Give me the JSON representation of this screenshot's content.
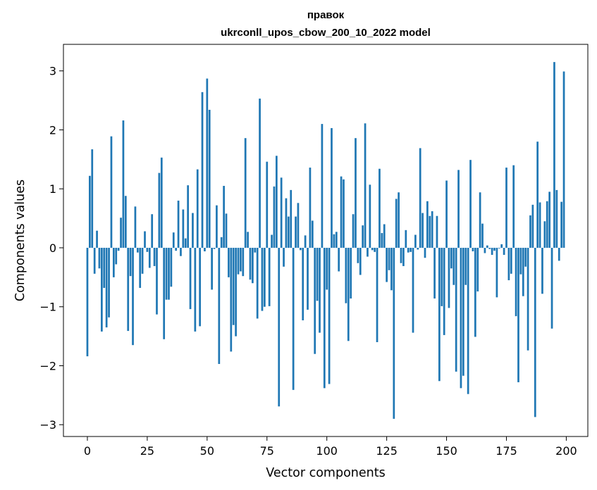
{
  "chart_data": {
    "type": "bar",
    "title_line1": "правок",
    "title_line2": "ukrconll_upos_cbow_200_10_2022 model",
    "xlabel": "Vector components",
    "ylabel": "Components values",
    "xlim": [
      -10,
      209
    ],
    "ylim": [
      -3.2,
      3.45
    ],
    "xticks": [
      0,
      25,
      50,
      75,
      100,
      125,
      150,
      175,
      200
    ],
    "yticks": [
      -3,
      -2,
      -1,
      0,
      1,
      2,
      3
    ],
    "bar_color": "#1f77b4",
    "grid": false,
    "x": [
      0,
      1,
      2,
      3,
      4,
      5,
      6,
      7,
      8,
      9,
      10,
      11,
      12,
      13,
      14,
      15,
      16,
      17,
      18,
      19,
      20,
      21,
      22,
      23,
      24,
      25,
      26,
      27,
      28,
      29,
      30,
      31,
      32,
      33,
      34,
      35,
      36,
      37,
      38,
      39,
      40,
      41,
      42,
      43,
      44,
      45,
      46,
      47,
      48,
      49,
      50,
      51,
      52,
      53,
      54,
      55,
      56,
      57,
      58,
      59,
      60,
      61,
      62,
      63,
      64,
      65,
      66,
      67,
      68,
      69,
      70,
      71,
      72,
      73,
      74,
      75,
      76,
      77,
      78,
      79,
      80,
      81,
      82,
      83,
      84,
      85,
      86,
      87,
      88,
      89,
      90,
      91,
      92,
      93,
      94,
      95,
      96,
      97,
      98,
      99,
      100,
      101,
      102,
      103,
      104,
      105,
      106,
      107,
      108,
      109,
      110,
      111,
      112,
      113,
      114,
      115,
      116,
      117,
      118,
      119,
      120,
      121,
      122,
      123,
      124,
      125,
      126,
      127,
      128,
      129,
      130,
      131,
      132,
      133,
      134,
      135,
      136,
      137,
      138,
      139,
      140,
      141,
      142,
      143,
      144,
      145,
      146,
      147,
      148,
      149,
      150,
      151,
      152,
      153,
      154,
      155,
      156,
      157,
      158,
      159,
      160,
      161,
      162,
      163,
      164,
      165,
      166,
      167,
      168,
      169,
      170,
      171,
      172,
      173,
      174,
      175,
      176,
      177,
      178,
      179,
      180,
      181,
      182,
      183,
      184,
      185,
      186,
      187,
      188,
      189,
      190,
      191,
      192,
      193,
      194,
      195,
      196,
      197,
      198,
      199
    ],
    "values": [
      -1.84,
      1.22,
      1.67,
      -0.44,
      0.29,
      -0.35,
      -1.42,
      -0.68,
      -1.35,
      -1.18,
      1.89,
      -0.5,
      -0.28,
      -0.05,
      0.51,
      2.16,
      0.88,
      -1.41,
      -0.48,
      -1.65,
      0.7,
      -0.08,
      -0.68,
      -0.44,
      0.28,
      -0.07,
      -0.34,
      0.57,
      -0.31,
      -1.13,
      1.27,
      1.53,
      -1.55,
      -0.88,
      -0.88,
      -0.66,
      0.26,
      -0.05,
      0.8,
      -0.14,
      0.65,
      0.16,
      1.06,
      -1.04,
      0.59,
      -1.42,
      1.33,
      -1.33,
      2.64,
      -0.06,
      2.87,
      2.34,
      -0.71,
      -0.02,
      0.72,
      -1.97,
      0.18,
      1.05,
      0.58,
      -0.5,
      -1.76,
      -1.31,
      -1.5,
      -0.45,
      -0.4,
      -0.48,
      1.86,
      0.27,
      -0.54,
      -0.6,
      -0.08,
      -1.2,
      2.53,
      -1.07,
      -1.0,
      1.46,
      -0.99,
      0.22,
      1.04,
      1.56,
      -2.69,
      1.19,
      -0.32,
      0.84,
      0.53,
      0.98,
      -2.41,
      0.53,
      0.76,
      -0.04,
      -1.23,
      0.21,
      -1.05,
      1.36,
      0.46,
      -1.8,
      -0.9,
      -1.44,
      2.1,
      -2.38,
      -0.71,
      -2.31,
      2.03,
      0.23,
      0.27,
      -0.4,
      1.21,
      1.16,
      -0.94,
      -1.58,
      -0.86,
      0.57,
      1.86,
      -0.26,
      -0.46,
      0.38,
      2.11,
      -0.15,
      1.07,
      -0.04,
      -0.07,
      -1.6,
      1.34,
      0.25,
      0.4,
      -0.58,
      -0.38,
      -0.72,
      -2.9,
      0.83,
      0.94,
      -0.26,
      -0.31,
      0.3,
      -0.08,
      -0.07,
      -1.44,
      0.22,
      -0.03,
      1.69,
      0.59,
      -0.17,
      0.79,
      0.54,
      0.62,
      -0.86,
      0.54,
      -2.26,
      -0.99,
      -1.48,
      1.14,
      -1.02,
      -0.35,
      -0.63,
      -2.1,
      1.32,
      -2.38,
      -2.17,
      -0.63,
      -2.48,
      1.49,
      -0.06,
      -1.51,
      -0.74,
      0.94,
      0.41,
      -0.09,
      0.04,
      -0.02,
      -0.12,
      -0.05,
      -0.84,
      -0.01,
      0.06,
      -0.12,
      1.36,
      -0.55,
      -0.44,
      1.4,
      -1.16,
      -2.28,
      -0.45,
      -0.82,
      -0.32,
      -1.74,
      0.55,
      0.73,
      -2.87,
      1.8,
      0.77,
      -0.78,
      0.45,
      0.79,
      0.95,
      -1.37,
      3.15,
      0.98,
      -0.22,
      0.78,
      2.99
    ]
  }
}
